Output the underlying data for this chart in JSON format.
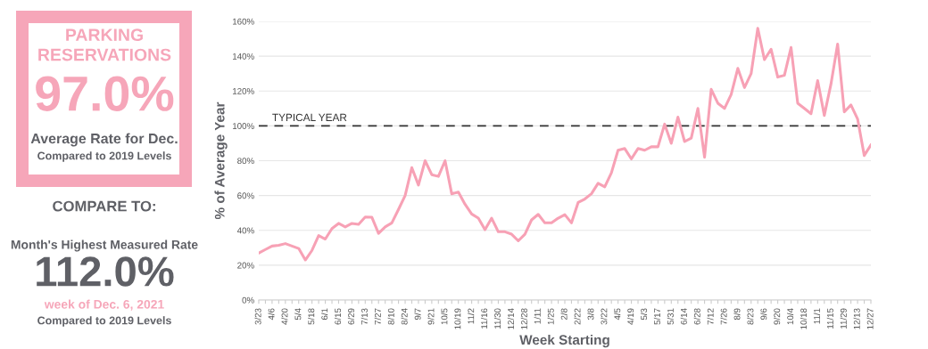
{
  "chart_data": [
    {
      "type": "other",
      "annotations": [
        "PARKING\nRESERVATIONS",
        "97.0%",
        "Average Rate for Dec.",
        "Compared to 2019 Levels",
        "COMPARE TO:",
        "Month's Highest Measured Rate",
        "112.0%",
        "week of Dec. 6, 2021",
        "Compared to 2019 Levels"
      ]
    },
    {
      "type": "line",
      "xlabel": "Week Starting",
      "ylabel": "% of Average Year",
      "categories": [
        "3/23",
        null,
        "4/6",
        null,
        "4/20",
        null,
        "5/4",
        null,
        "5/18",
        null,
        "6/1",
        null,
        "6/15",
        null,
        "6/29",
        null,
        "7/13",
        null,
        "7/27",
        null,
        "8/10",
        null,
        "8/24",
        null,
        "9/7",
        null,
        "9/21",
        null,
        "10/5",
        null,
        "10/19",
        null,
        "11/2",
        null,
        "11/16",
        null,
        "11/30",
        null,
        "12/14",
        null,
        "12/28",
        null,
        "1/11",
        null,
        "1/25",
        null,
        "2/8",
        null,
        "2/22",
        null,
        "3/8",
        null,
        "3/22",
        null,
        "4/5",
        null,
        "4/19",
        null,
        "5/3",
        null,
        "5/17",
        null,
        "5/31",
        null,
        "6/14",
        null,
        "6/28",
        null,
        "7/12",
        null,
        "7/26",
        null,
        "8/9",
        null,
        "8/23",
        null,
        "9/6",
        null,
        "9/20",
        null,
        "10/4",
        null,
        "10/18",
        null,
        "11/1",
        null,
        "11/15",
        null,
        "11/29",
        null,
        "12/13",
        null,
        "12/27"
      ],
      "series": [
        {
          "color": "#f7a1b5",
          "values": [
            27,
            29,
            31,
            31.4,
            32.4,
            31,
            29.6,
            23,
            28.5,
            37,
            35,
            41,
            44,
            42,
            44,
            43.5,
            47.7,
            47.5,
            38.3,
            42,
            44.3,
            52,
            60,
            76,
            66,
            80,
            72,
            71,
            80,
            61,
            62,
            55,
            49.4,
            47,
            40.4,
            47,
            39.2,
            39.2,
            37.8,
            34,
            37.8,
            46,
            49.2,
            44.3,
            44.3,
            47,
            49,
            44.3,
            56,
            58,
            61,
            67,
            65,
            73,
            86,
            87,
            81,
            87,
            86,
            88,
            88,
            101,
            90,
            105,
            91,
            93,
            110,
            82,
            121,
            113,
            110,
            118,
            133,
            122,
            130,
            156,
            138,
            144,
            128,
            129,
            145,
            113,
            110,
            107,
            126,
            106,
            124,
            147,
            108,
            112,
            104,
            83,
            89
          ]
        }
      ],
      "ylim": [
        0,
        160
      ],
      "yticks": [
        {
          "value": 0,
          "label": "0%"
        },
        {
          "value": 20,
          "label": "20%"
        },
        {
          "value": 40,
          "label": "40%"
        },
        {
          "value": 60,
          "label": "60%"
        },
        {
          "value": 80,
          "label": "80%"
        },
        {
          "value": 100,
          "label": "100%"
        },
        {
          "value": 120,
          "label": "120%"
        },
        {
          "value": 140,
          "label": "140%"
        },
        {
          "value": 160,
          "label": "160%"
        }
      ],
      "grid": "y",
      "marker": "none",
      "line_style": "solid",
      "ref_lines": [
        {
          "axis": "y",
          "value": 100,
          "label": "TYPICAL YEAR",
          "color": "#333333",
          "line_style": "dashed"
        }
      ]
    }
  ]
}
